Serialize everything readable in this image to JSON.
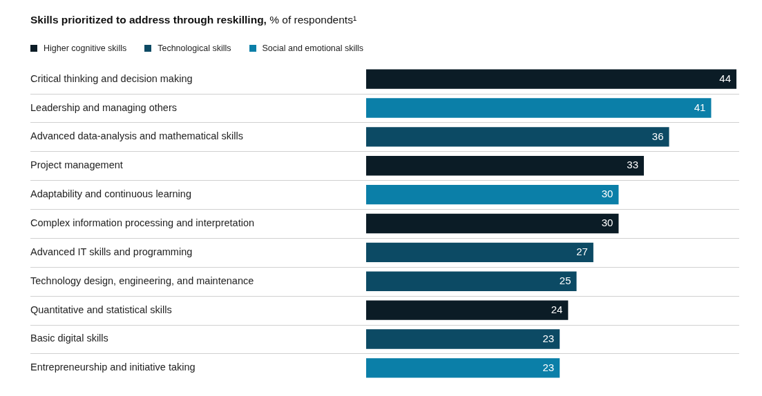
{
  "chart_data": {
    "type": "bar",
    "orientation": "horizontal",
    "stacked": true,
    "title": "Skills prioritized to address through reskilling,",
    "subtitle": "% of respondents¹",
    "categories": [
      "Critical thinking and decision making",
      "Leadership and managing others",
      "Advanced data-analysis and mathematical skills",
      "Project management",
      "Adaptability and continuous learning",
      "Complex information processing and interpretation",
      "Advanced IT skills and programming",
      "Technology design, engineering, and maintenance",
      "Quantitative and statistical skills",
      "Basic digital skills",
      "Entrepreneurship and initiative taking"
    ],
    "series": [
      {
        "name": "Higher cognitive skills",
        "color": "#0b1c26",
        "values": [
          44,
          null,
          null,
          33,
          null,
          30,
          null,
          null,
          24,
          null,
          null
        ]
      },
      {
        "name": "Technological skills",
        "color": "#0c4a64",
        "values": [
          null,
          null,
          36,
          null,
          null,
          null,
          27,
          25,
          null,
          23,
          null
        ]
      },
      {
        "name": "Social and emotional skills",
        "color": "#0b7fa8",
        "values": [
          null,
          41,
          null,
          null,
          30,
          null,
          null,
          null,
          null,
          null,
          23
        ]
      }
    ],
    "xlim": [
      0,
      44
    ],
    "tick_labels": "y",
    "data_labels": true,
    "grid": "y",
    "legend": "top left"
  }
}
